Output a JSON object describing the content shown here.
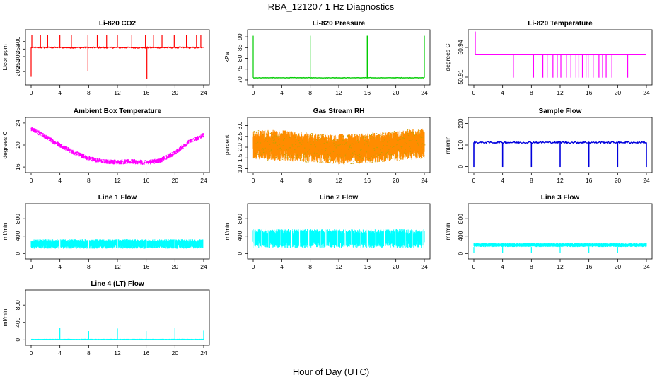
{
  "figure": {
    "title": "RBA_121207  1 Hz Diagnostics",
    "xlabel": "Hour of Day (UTC)"
  },
  "chart_data": [
    {
      "id": "p1",
      "type": "line",
      "title": "Li-820 CO2",
      "ylabel": "Licor ppm",
      "color": "#ff0000",
      "xlim": [
        0,
        24
      ],
      "ylim": [
        130,
        460
      ],
      "xticks": [
        "0",
        "4",
        "8",
        "12",
        "16",
        "20",
        "24"
      ],
      "yticks": [
        "200",
        "250",
        "300",
        "350",
        "400"
      ],
      "ytick_values": [
        200,
        250,
        300,
        350,
        400
      ],
      "baseline": 360,
      "noise": 8,
      "spikes_up": [
        0.1,
        1.3,
        2.3,
        4.0,
        5.6,
        7.9,
        9.2,
        10.5,
        12.0,
        14.0,
        15.9,
        17.0,
        18.2,
        19.9,
        21.6,
        23.0,
        23.6
      ],
      "spike_up_to": 445,
      "spikes_down": [
        0.0,
        7.9,
        16.1
      ],
      "spike_down_to": [
        165,
        205,
        150
      ]
    },
    {
      "id": "p2",
      "type": "line",
      "title": "Li-820 Pressure",
      "ylabel": "kPa",
      "color": "#00cc00",
      "xlim": [
        0,
        24
      ],
      "ylim": [
        69,
        92
      ],
      "xticks": [
        "0",
        "4",
        "8",
        "12",
        "16",
        "20",
        "24"
      ],
      "yticks": [
        "70",
        "75",
        "80",
        "85",
        "90"
      ],
      "ytick_values": [
        70,
        75,
        80,
        85,
        90
      ],
      "baseline": 71,
      "noise": 0.2,
      "spikes_up": [
        0.0,
        8.0,
        16.0,
        16.0,
        24.0
      ],
      "spike_up_to": 90.5
    },
    {
      "id": "p3",
      "type": "line",
      "title": "Li-820 Temperature",
      "ylabel": "degrees C",
      "color": "#ff00ff",
      "xlim": [
        0,
        24
      ],
      "ylim": [
        50.905,
        50.955
      ],
      "xticks": [
        "0",
        "4",
        "8",
        "12",
        "16",
        "20",
        "24"
      ],
      "yticks": [
        "50.91",
        "50.94"
      ],
      "ytick_values": [
        50.91,
        50.94
      ],
      "baseline": 50.9325,
      "level_low": 50.9095,
      "level_high": 50.956,
      "drops": [
        5.5,
        8.3,
        9.6,
        10.2,
        11.0,
        11.6,
        12.1,
        12.9,
        13.5,
        14.2,
        14.6,
        15.1,
        15.6,
        15.9,
        16.6,
        17.4,
        17.9,
        18.4,
        19.2,
        21.4
      ]
    },
    {
      "id": "p4",
      "type": "line",
      "title": "Ambient Box Temperature",
      "ylabel": "degrees C",
      "color": "#ff00ff",
      "xlim": [
        0,
        24
      ],
      "ylim": [
        15.5,
        24.5
      ],
      "xticks": [
        "0",
        "4",
        "8",
        "12",
        "16",
        "20",
        "24"
      ],
      "yticks": [
        "16",
        "20",
        "24"
      ],
      "ytick_values": [
        16,
        20,
        24
      ],
      "curve": [
        [
          0,
          23.0
        ],
        [
          2,
          21.5
        ],
        [
          4,
          20.0
        ],
        [
          6,
          18.6
        ],
        [
          8,
          17.6
        ],
        [
          10,
          17.0
        ],
        [
          12,
          16.9
        ],
        [
          14,
          17.0
        ],
        [
          16,
          16.8
        ],
        [
          18,
          17.2
        ],
        [
          20,
          18.6
        ],
        [
          22,
          20.6
        ],
        [
          24,
          21.8
        ]
      ],
      "band": 0.9
    },
    {
      "id": "p5",
      "type": "band",
      "title": "Gas Stream RH",
      "ylabel": "percent",
      "color": "#ff8c00",
      "color2": "#c8a000",
      "xlim": [
        0,
        24
      ],
      "ylim": [
        0.95,
        3.25
      ],
      "xticks": [
        "0",
        "4",
        "8",
        "12",
        "16",
        "20",
        "24"
      ],
      "yticks": [
        "1.0",
        "1.5",
        "2.0",
        "2.5",
        "3.0"
      ],
      "ytick_values": [
        1.0,
        1.5,
        2.0,
        2.5,
        3.0
      ],
      "upper": [
        [
          0,
          2.8
        ],
        [
          4,
          2.8
        ],
        [
          8,
          2.65
        ],
        [
          12,
          2.6
        ],
        [
          16,
          2.65
        ],
        [
          20,
          2.75
        ],
        [
          24,
          2.9
        ]
      ],
      "lower": [
        [
          0,
          1.45
        ],
        [
          4,
          1.35
        ],
        [
          8,
          1.3
        ],
        [
          12,
          1.2
        ],
        [
          16,
          1.25
        ],
        [
          20,
          1.35
        ],
        [
          24,
          1.5
        ]
      ]
    },
    {
      "id": "p6",
      "type": "line",
      "title": "Sample Flow",
      "ylabel": "ml/min",
      "color": "#0000dd",
      "xlim": [
        0,
        24
      ],
      "ylim": [
        -15,
        215
      ],
      "xticks": [
        "0",
        "4",
        "8",
        "12",
        "16",
        "20",
        "24"
      ],
      "yticks": [
        "0",
        "100",
        "200"
      ],
      "ytick_values": [
        0,
        100,
        200
      ],
      "baseline": 112,
      "noise": 8,
      "dips": [
        0.0,
        4.0,
        8.0,
        12.0,
        16.0,
        20.0,
        24.0
      ],
      "dip_to": -2
    },
    {
      "id": "p7",
      "type": "band",
      "title": "Line 1 Flow",
      "ylabel": "ml/min",
      "color": "#00ffff",
      "xlim": [
        0,
        24
      ],
      "ylim": [
        -60,
        1080
      ],
      "xticks": [
        "0",
        "4",
        "8",
        "12",
        "16",
        "20",
        "24"
      ],
      "yticks": [
        "0",
        "400",
        "800"
      ],
      "ytick_values": [
        0,
        400,
        800
      ],
      "upper": [
        [
          0,
          330
        ],
        [
          24,
          330
        ]
      ],
      "lower": [
        [
          0,
          110
        ],
        [
          24,
          110
        ]
      ],
      "gaps": [
        4.0,
        8.0,
        12.0,
        16.0,
        20.0,
        24.0
      ]
    },
    {
      "id": "p8",
      "type": "band",
      "title": "Line 2 Flow",
      "ylabel": "ml/min",
      "color": "#00ffff",
      "xlim": [
        0,
        24
      ],
      "ylim": [
        -60,
        1080
      ],
      "xticks": [
        "0",
        "4",
        "8",
        "12",
        "16",
        "20",
        "24"
      ],
      "yticks": [
        "0",
        "400",
        "800"
      ],
      "ytick_values": [
        0,
        400,
        800
      ],
      "upper": [
        [
          0,
          560
        ],
        [
          24,
          560
        ]
      ],
      "lower": [
        [
          0,
          130
        ],
        [
          24,
          130
        ]
      ],
      "gaps": [
        0.1,
        1.2,
        2.2,
        3.9,
        5.4,
        6.5,
        7.8,
        9.4,
        10.2,
        11.8,
        12.9,
        13.8,
        15.1,
        16.0,
        17.2,
        18.4,
        19.9,
        21.3,
        22.3,
        23.8
      ]
    },
    {
      "id": "p9",
      "type": "band",
      "title": "Line 3 Flow",
      "ylabel": "ml/min",
      "color": "#00ffff",
      "xlim": [
        0,
        24
      ],
      "ylim": [
        -60,
        1080
      ],
      "xticks": [
        "0",
        "4",
        "8",
        "12",
        "16",
        "20",
        "24"
      ],
      "yticks": [
        "0",
        "400",
        "800"
      ],
      "ytick_values": [
        0,
        400,
        800
      ],
      "upper": [
        [
          0,
          240
        ],
        [
          24,
          240
        ]
      ],
      "lower": [
        [
          0,
          150
        ],
        [
          24,
          150
        ]
      ],
      "dips": [
        0.0,
        4.0,
        8.0,
        12.0,
        16.0,
        20.0
      ],
      "dip_to": 20
    },
    {
      "id": "p10",
      "type": "line",
      "title": "Line 4 (LT) Flow",
      "ylabel": "ml/min",
      "color": "#00ffff",
      "xlim": [
        0,
        24
      ],
      "ylim": [
        -60,
        1080
      ],
      "xticks": [
        "0",
        "4",
        "8",
        "12",
        "16",
        "20",
        "24"
      ],
      "yticks": [
        "0",
        "400",
        "800"
      ],
      "ytick_values": [
        0,
        400,
        800
      ],
      "baseline": 10,
      "noise": 6,
      "spikes_up": [
        4.0,
        8.0,
        12.0,
        16.0,
        20.0,
        24.0
      ],
      "spike_heights": [
        270,
        200,
        260,
        200,
        270,
        210
      ]
    }
  ]
}
